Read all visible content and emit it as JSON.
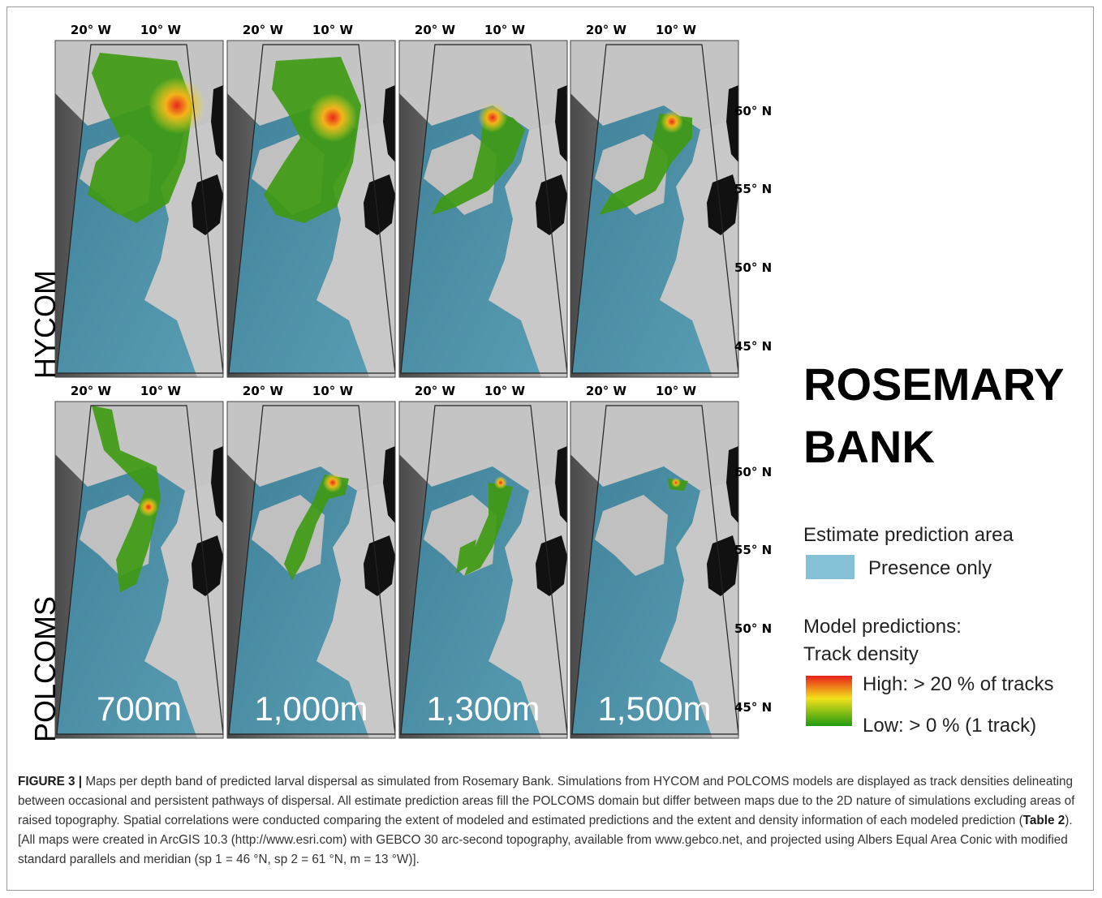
{
  "figure": {
    "longitude_labels": [
      "20° W",
      "10° W"
    ],
    "latitude_labels": [
      "60° N",
      "55° N",
      "50° N",
      "45° N"
    ],
    "rows": [
      "HYCOM",
      "POLCOMS"
    ],
    "depths": [
      "700m",
      "1,000m",
      "1,300m",
      "1,500m"
    ],
    "title": [
      "ROSEMARY",
      "BANK"
    ],
    "legend": {
      "area_heading": "Estimate prediction area",
      "area_item": "Presence only",
      "model_heading": [
        "Model predictions:",
        "Track density"
      ],
      "high": "High: > 20 % of tracks",
      "low": "Low: > 0 % (1 track)"
    }
  },
  "caption": {
    "label": "FIGURE 3 |",
    "text1": " Maps per depth band of predicted larval dispersal as simulated from Rosemary Bank. Simulations from HYCOM and POLCOMS models are displayed as track densities delineating between occasional and persistent pathways of dispersal. All estimate prediction areas fill the POLCOMS domain but differ between maps due to the 2D nature of simulations excluding areas of raised topography. Spatial correlations were conducted comparing the extent of modeled and estimated predictions and the extent and density information of each modeled prediction (",
    "table_ref": "Table 2",
    "text2": "). [All maps were created in ArcGIS 10.3 (http://www.esri.com) with GEBCO 30 arc-second topography, available from www.gebco.net, and projected using Albers Equal Area Conic with modified standard parallels and meridian (sp 1 = 46 °N, sp 2 = 61 °N, m = 13 °W)]."
  }
}
